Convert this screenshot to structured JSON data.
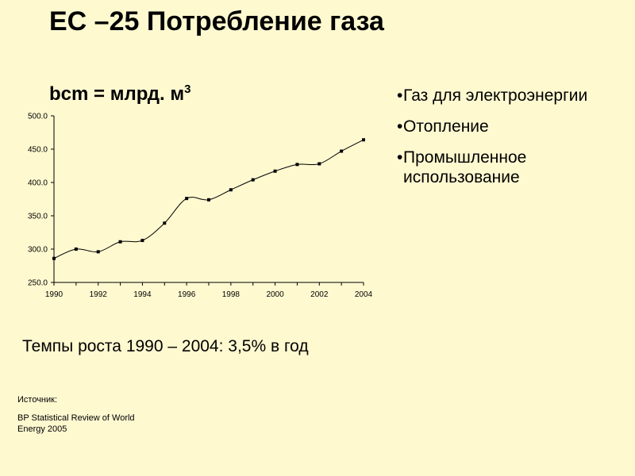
{
  "title": "ЕС –25 Потребление газа",
  "subtitle_main": "bcm = млрд. м",
  "subtitle_sup": "3",
  "bullets": [
    "Газ для электроэнергии",
    "Отопление",
    "Промышленное использование"
  ],
  "growth_text": "Темпы роста 1990 – 2004: 3,5% в год",
  "source_label": "Источник:",
  "source_text": "BP Statistical Review of World Energy 2005",
  "chart_data": {
    "type": "line",
    "title": "",
    "xlabel": "",
    "ylabel": "",
    "x": [
      1990,
      1991,
      1992,
      1993,
      1994,
      1995,
      1996,
      1997,
      1998,
      1999,
      2000,
      2001,
      2002,
      2003,
      2004
    ],
    "values": [
      286,
      300,
      296,
      311,
      313,
      339,
      376,
      374,
      389,
      404,
      417,
      427,
      428,
      447,
      464
    ],
    "xlim": [
      1990,
      2004
    ],
    "ylim": [
      250,
      500
    ],
    "yticks": [
      "250.0",
      "300.0",
      "350.0",
      "400.0",
      "450.0",
      "500.0"
    ],
    "xticks": [
      "1990",
      "1992",
      "1994",
      "1996",
      "1998",
      "2000",
      "2002",
      "2004"
    ],
    "grid": false,
    "line_color": "#000000"
  }
}
